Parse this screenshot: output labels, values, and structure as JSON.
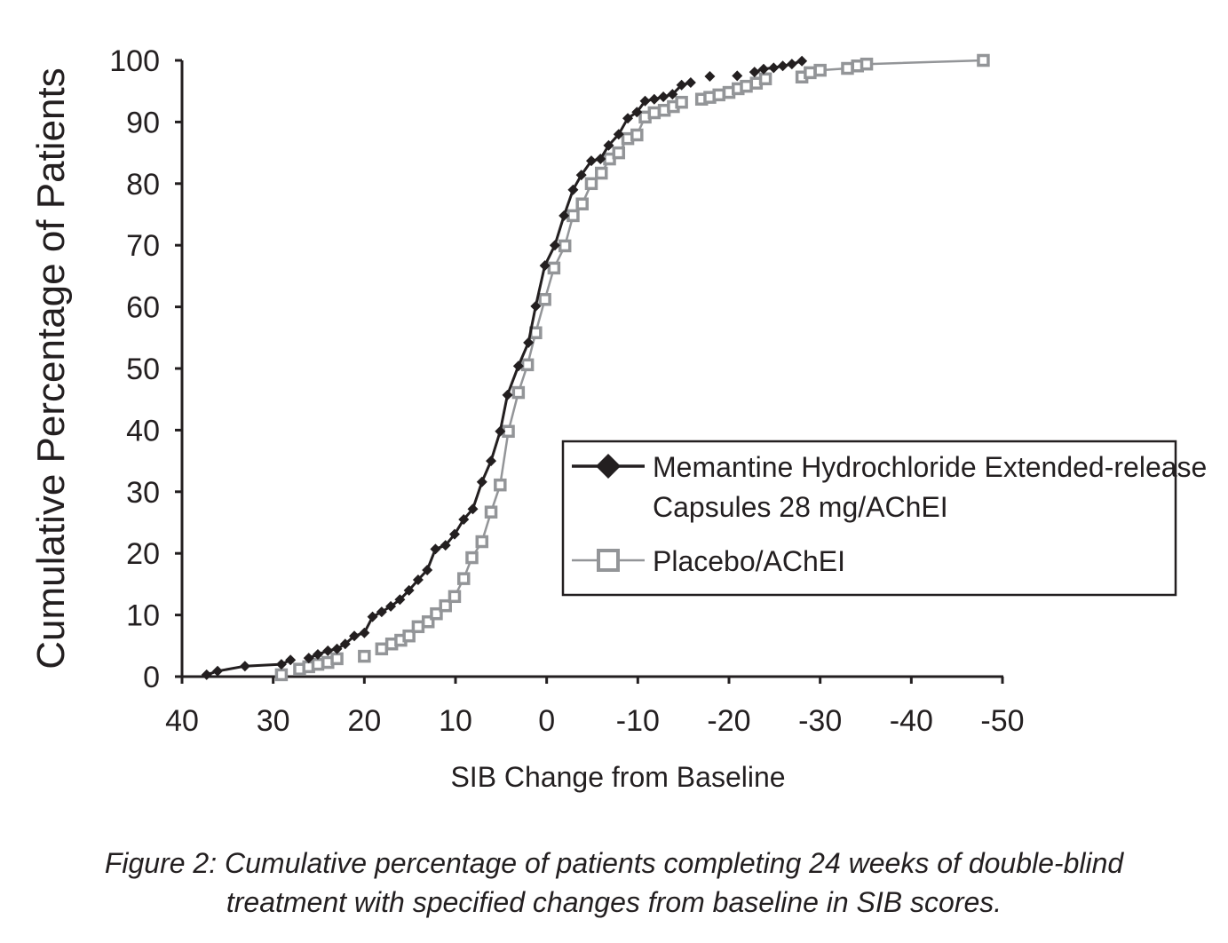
{
  "chart_data": {
    "type": "line",
    "title": "",
    "xlabel": "SIB Change from Baseline",
    "ylabel": "Cumulative Percentage of Patients",
    "xlim": [
      40,
      -50
    ],
    "ylim": [
      0,
      100
    ],
    "x_reversed": true,
    "x_ticks": [
      40,
      30,
      20,
      10,
      0,
      -10,
      -20,
      -30,
      -40,
      -50
    ],
    "x_tick_labels": [
      "40",
      "30",
      "20",
      "10",
      "0",
      "-10",
      "-20",
      "-30",
      "-40",
      "-50"
    ],
    "y_ticks": [
      0,
      10,
      20,
      30,
      40,
      50,
      60,
      70,
      80,
      90,
      100
    ],
    "y_tick_labels": [
      "0",
      "10",
      "20",
      "30",
      "40",
      "50",
      "60",
      "70",
      "80",
      "90",
      "100"
    ],
    "grid": false,
    "legend_position": "center-right",
    "series": [
      {
        "name": "Memantine Hydrochloride Extended-release Capsules 28 mg/AChEI",
        "legend_lines": [
          "Memantine Hydrochloride Extended-release",
          "Capsules 28 mg/AChEI"
        ],
        "marker": "diamond",
        "color": "#231f20",
        "segments": [
          [
            [
              37.3,
              0.3
            ],
            [
              36.1,
              0.9
            ],
            [
              33.1,
              1.7
            ],
            [
              29.1,
              2.0
            ],
            [
              28.1,
              2.7
            ]
          ],
          [
            [
              26.1,
              3.0
            ],
            [
              25.1,
              3.6
            ],
            [
              24.0,
              4.2
            ],
            [
              23.0,
              4.5
            ],
            [
              22.1,
              5.3
            ],
            [
              21.1,
              6.6
            ],
            [
              20.0,
              7.1
            ],
            [
              19.1,
              9.7
            ],
            [
              18.1,
              10.5
            ],
            [
              17.1,
              11.4
            ],
            [
              16.1,
              12.5
            ],
            [
              15.1,
              14.0
            ],
            [
              14.1,
              15.7
            ],
            [
              13.1,
              17.3
            ],
            [
              12.2,
              20.7
            ],
            [
              11.1,
              21.3
            ],
            [
              10.1,
              23.1
            ],
            [
              9.1,
              25.5
            ],
            [
              8.1,
              27.2
            ],
            [
              7.1,
              31.6
            ],
            [
              6.1,
              35.0
            ],
            [
              5.1,
              39.8
            ],
            [
              4.3,
              45.7
            ],
            [
              3.1,
              50.4
            ],
            [
              2.0,
              54.2
            ],
            [
              1.2,
              60.1
            ],
            [
              0.2,
              66.7
            ],
            [
              -0.9,
              70.0
            ],
            [
              -1.9,
              74.8
            ],
            [
              -2.9,
              79.0
            ],
            [
              -3.8,
              81.4
            ],
            [
              -4.9,
              83.7
            ],
            [
              -5.9,
              84.0
            ],
            [
              -6.8,
              86.2
            ],
            [
              -7.9,
              88.0
            ],
            [
              -8.9,
              90.6
            ],
            [
              -9.9,
              91.6
            ],
            [
              -10.8,
              93.4
            ],
            [
              -11.8,
              93.7
            ],
            [
              -12.8,
              94.1
            ],
            [
              -13.8,
              94.5
            ],
            [
              -14.8,
              96.0
            ],
            [
              -15.8,
              96.4
            ]
          ],
          [
            [
              -17.9,
              97.4
            ]
          ],
          [
            [
              -20.9,
              97.5
            ]
          ],
          [
            [
              -22.8,
              98.1
            ],
            [
              -23.8,
              98.6
            ],
            [
              -24.9,
              98.8
            ],
            [
              -25.9,
              99.1
            ],
            [
              -26.9,
              99.4
            ],
            [
              -28.0,
              99.9
            ]
          ]
        ]
      },
      {
        "name": "Placebo/AChEI",
        "legend_lines": [
          "Placebo/AChEI"
        ],
        "marker": "square-open",
        "color": "#939598",
        "segments": [
          [
            [
              29.1,
              0.3
            ]
          ],
          [
            [
              27.1,
              1.2
            ],
            [
              26.1,
              1.6
            ],
            [
              25.1,
              2.0
            ],
            [
              24.0,
              2.3
            ],
            [
              23.0,
              2.9
            ]
          ],
          [
            [
              20.0,
              3.3
            ]
          ],
          [
            [
              18.1,
              4.5
            ],
            [
              17.0,
              5.3
            ],
            [
              16.0,
              5.9
            ],
            [
              15.1,
              6.6
            ],
            [
              14.1,
              8.1
            ],
            [
              13.0,
              8.9
            ],
            [
              12.1,
              10.2
            ],
            [
              11.1,
              11.5
            ],
            [
              10.1,
              13.0
            ],
            [
              9.1,
              15.9
            ],
            [
              8.2,
              19.3
            ],
            [
              7.1,
              21.9
            ],
            [
              6.1,
              26.7
            ],
            [
              5.1,
              31.1
            ],
            [
              4.2,
              39.8
            ],
            [
              3.1,
              46.1
            ],
            [
              2.1,
              50.6
            ],
            [
              1.2,
              55.8
            ],
            [
              0.2,
              61.2
            ],
            [
              -0.8,
              66.3
            ],
            [
              -2.0,
              69.9
            ],
            [
              -2.9,
              74.8
            ],
            [
              -3.9,
              76.7
            ],
            [
              -4.9,
              80.0
            ],
            [
              -6.0,
              81.7
            ],
            [
              -6.9,
              84.0
            ],
            [
              -7.9,
              85.0
            ],
            [
              -8.9,
              87.3
            ],
            [
              -9.9,
              87.9
            ],
            [
              -10.8,
              90.8
            ],
            [
              -11.8,
              91.5
            ],
            [
              -12.9,
              91.9
            ],
            [
              -13.9,
              92.5
            ],
            [
              -14.8,
              93.2
            ]
          ],
          [
            [
              -17.0,
              93.7
            ],
            [
              -17.9,
              94.0
            ],
            [
              -18.9,
              94.4
            ],
            [
              -20.0,
              94.8
            ],
            [
              -21.0,
              95.4
            ],
            [
              -21.9,
              95.8
            ],
            [
              -23.0,
              96.3
            ],
            [
              -24.0,
              97.0
            ]
          ],
          [
            [
              -28.0,
              97.3
            ],
            [
              -28.9,
              98.0
            ],
            [
              -30.0,
              98.4
            ],
            [
              -33.0,
              98.7
            ],
            [
              -34.1,
              99.1
            ],
            [
              -35.1,
              99.4
            ],
            [
              -47.9,
              100.0
            ]
          ]
        ]
      }
    ],
    "caption": [
      "Figure 2: Cumulative percentage of patients completing 24 weeks of double-blind",
      "treatment with specified changes from baseline in SIB scores."
    ]
  }
}
